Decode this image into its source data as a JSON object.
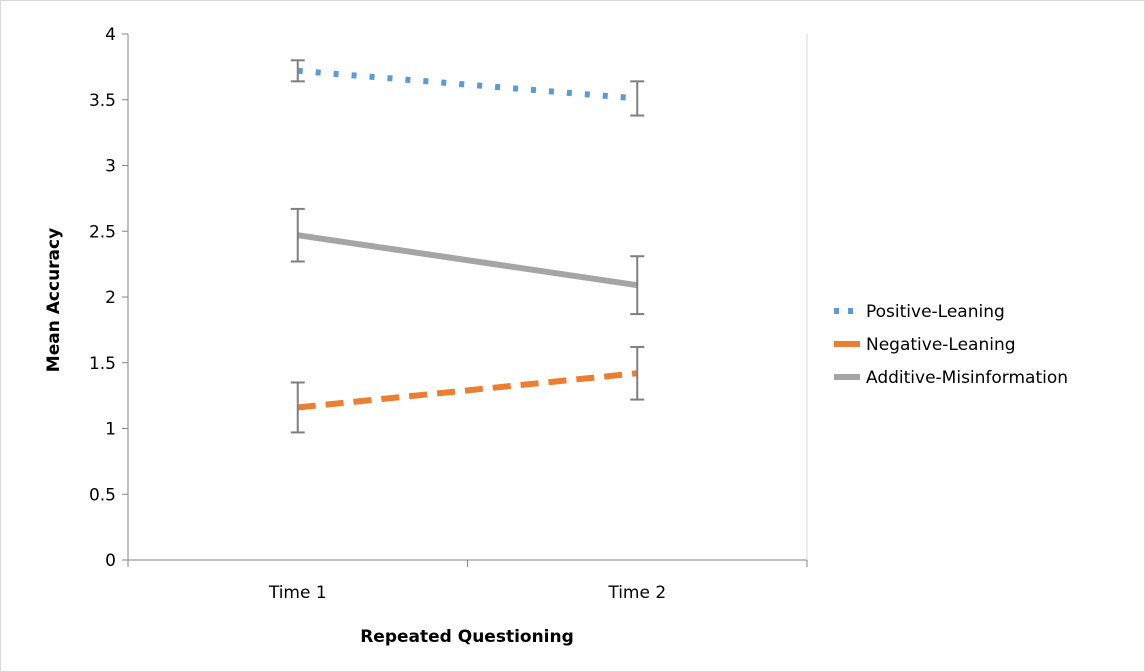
{
  "chart_data": {
    "type": "line",
    "title": "",
    "xlabel": "Repeated Questioning",
    "ylabel": "Mean Accuracy",
    "categories": [
      "Time 1",
      "Time 2"
    ],
    "ylim": [
      0,
      4
    ],
    "yticks": [
      "0",
      "0.5",
      "1",
      "1.5",
      "2",
      "2.5",
      "3",
      "3.5",
      "4"
    ],
    "grid": false,
    "legend_position": "right",
    "series": [
      {
        "name": "Positive-Leaning",
        "values": [
          3.72,
          3.51
        ],
        "error_low": [
          3.64,
          3.38
        ],
        "error_high": [
          3.8,
          3.64
        ],
        "color": "#5b9bd5",
        "style": "dotted"
      },
      {
        "name": "Negative-Leaning",
        "values": [
          1.16,
          1.42
        ],
        "error_low": [
          0.97,
          1.22
        ],
        "error_high": [
          1.35,
          1.62
        ],
        "color": "#ed7d31",
        "style": "dashed"
      },
      {
        "name": "Additive-Misinformation",
        "values": [
          2.47,
          2.09
        ],
        "error_low": [
          2.27,
          1.87
        ],
        "error_high": [
          2.67,
          2.31
        ],
        "color": "#a5a5a5",
        "style": "solid"
      }
    ],
    "error_bar_color": "#7f7f7f"
  }
}
